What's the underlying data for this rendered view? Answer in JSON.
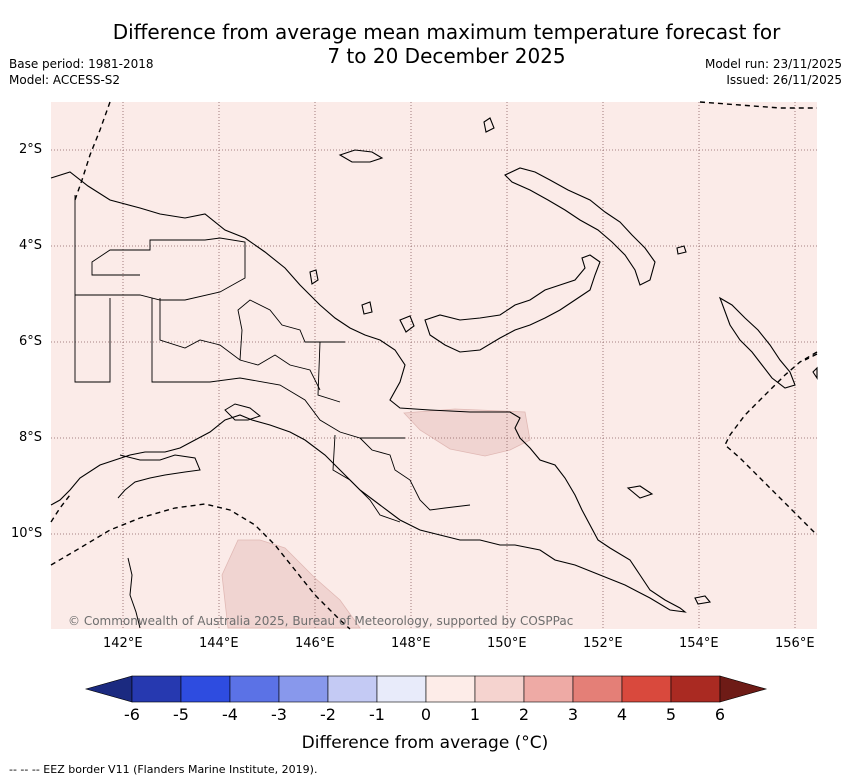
{
  "title": {
    "line1": "Difference from average mean maximum temperature forecast for",
    "line2": "7 to 20 December 2025"
  },
  "meta": {
    "base_period": "Base period: 1981-2018",
    "model": "Model: ACCESS-S2",
    "model_run": "Model run: 23/11/2025",
    "issued": "Issued: 26/11/2025"
  },
  "map": {
    "copyright": "© Commonwealth of Australia 2025, Bureau of Meteorology, supported by COSPPac",
    "lat_labels": [
      "2°S",
      "4°S",
      "6°S",
      "8°S",
      "10°S"
    ],
    "lon_labels": [
      "142°E",
      "144°E",
      "146°E",
      "148°E",
      "150°E",
      "152°E",
      "154°E",
      "156°E"
    ],
    "background_color": "#fbebe8",
    "anomaly_color": "#f0d4d1",
    "grid": true
  },
  "colorbar": {
    "label": "Difference from average (°C)",
    "ticks": [
      "-6",
      "-5",
      "-4",
      "-3",
      "-2",
      "-1",
      "0",
      "1",
      "2",
      "3",
      "4",
      "5",
      "6"
    ],
    "colors": [
      "#1b2a80",
      "#2639b0",
      "#2e4ce0",
      "#5b72e6",
      "#8898ec",
      "#c4caf4",
      "#e8ebfa",
      "#fdece8",
      "#f5d3cf",
      "#eeaaa5",
      "#e47f77",
      "#d9493d",
      "#aa2a22",
      "#6e1b16"
    ]
  },
  "footer": "--  --  -- EEZ border V11 (Flanders Marine Institute, 2019)."
}
